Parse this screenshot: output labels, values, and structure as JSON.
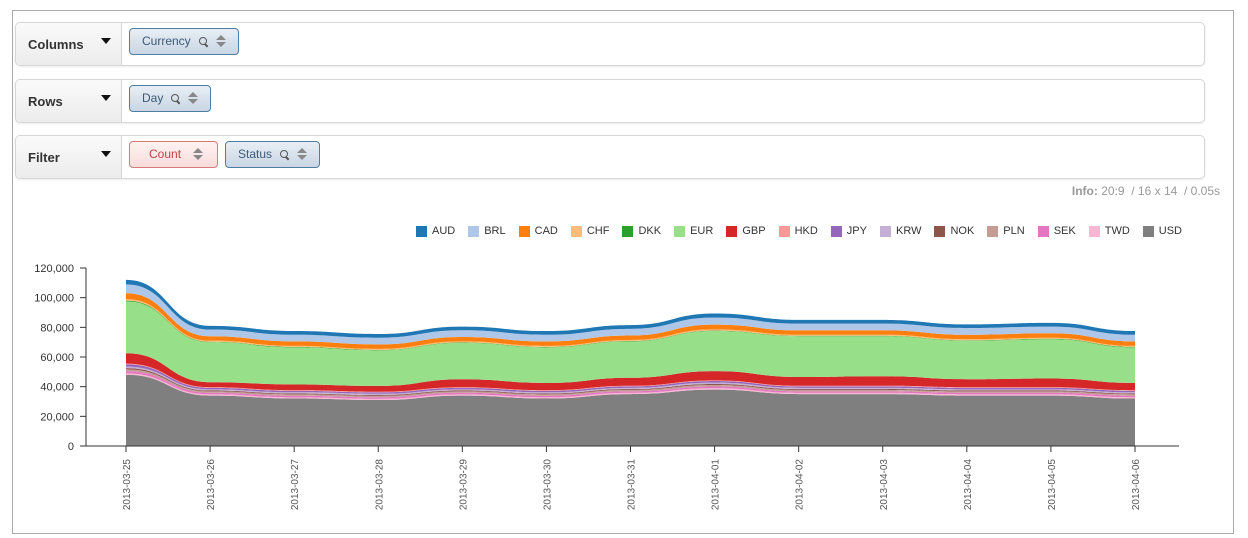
{
  "controls": {
    "columns": {
      "label": "Columns",
      "pills": [
        {
          "label": "Currency"
        }
      ]
    },
    "rows": {
      "label": "Rows",
      "pills": [
        {
          "label": "Day"
        }
      ]
    },
    "filter": {
      "label": "Filter",
      "pills": [
        {
          "label": "Count"
        },
        {
          "label": "Status"
        }
      ]
    }
  },
  "info": {
    "label": "Info:",
    "ratio": "20:9",
    "size": "16 x 14",
    "time": "0.05s"
  },
  "chart_data": {
    "type": "area",
    "stacked": true,
    "x": [
      "2013-03-25",
      "2013-03-26",
      "2013-03-27",
      "2013-03-28",
      "2013-03-29",
      "2013-03-30",
      "2013-03-31",
      "2013-04-01",
      "2013-04-02",
      "2013-04-03",
      "2013-04-04",
      "2013-04-05",
      "2013-04-06"
    ],
    "ylim": [
      0,
      120000
    ],
    "yticks": [
      "0",
      "20,000",
      "40,000",
      "60,000",
      "80,000",
      "100,000",
      "120,000"
    ],
    "legend_position": "top-right",
    "series": [
      {
        "name": "USD",
        "color": "#7f7f7f",
        "values": [
          48000,
          34000,
          32000,
          31000,
          34000,
          32000,
          35000,
          38000,
          35000,
          35000,
          34000,
          34000,
          32000
        ]
      },
      {
        "name": "TWD",
        "color": "#f7b6d2",
        "values": [
          1000,
          800,
          800,
          800,
          800,
          800,
          800,
          900,
          800,
          800,
          800,
          800,
          800
        ]
      },
      {
        "name": "SEK",
        "color": "#e377c2",
        "values": [
          1500,
          1100,
          1100,
          1100,
          1100,
          1100,
          1100,
          1200,
          1100,
          1100,
          1100,
          1100,
          1100
        ]
      },
      {
        "name": "PLN",
        "color": "#c49c94",
        "values": [
          1200,
          900,
          900,
          900,
          900,
          900,
          900,
          1000,
          900,
          900,
          900,
          900,
          900
        ]
      },
      {
        "name": "NOK",
        "color": "#8c564b",
        "values": [
          800,
          600,
          600,
          600,
          600,
          600,
          600,
          700,
          600,
          600,
          600,
          600,
          600
        ]
      },
      {
        "name": "KRW",
        "color": "#c5b0d5",
        "values": [
          1000,
          800,
          800,
          800,
          800,
          800,
          800,
          900,
          800,
          800,
          800,
          800,
          800
        ]
      },
      {
        "name": "JPY",
        "color": "#9467bd",
        "values": [
          1500,
          1000,
          1000,
          1000,
          1000,
          1000,
          1000,
          1100,
          1000,
          1000,
          1000,
          1000,
          1000
        ]
      },
      {
        "name": "HKD",
        "color": "#ff9896",
        "values": [
          500,
          400,
          400,
          400,
          400,
          400,
          400,
          400,
          400,
          400,
          400,
          400,
          400
        ]
      },
      {
        "name": "GBP",
        "color": "#d62728",
        "values": [
          7000,
          3400,
          3900,
          3900,
          5400,
          4900,
          5400,
          6300,
          5900,
          6400,
          5400,
          5900,
          4900
        ]
      },
      {
        "name": "EUR",
        "color": "#98df8a",
        "values": [
          35000,
          27000,
          25000,
          24000,
          24500,
          24000,
          24500,
          27000,
          27500,
          27000,
          26000,
          26500,
          24000
        ]
      },
      {
        "name": "DKK",
        "color": "#2ca02c",
        "values": [
          500,
          300,
          300,
          300,
          300,
          300,
          300,
          300,
          300,
          300,
          300,
          300,
          300
        ]
      },
      {
        "name": "CHF",
        "color": "#ffbb78",
        "values": [
          1000,
          700,
          700,
          700,
          700,
          700,
          700,
          800,
          700,
          700,
          700,
          700,
          700
        ]
      },
      {
        "name": "CAD",
        "color": "#ff7f0e",
        "values": [
          4000,
          3000,
          3000,
          3000,
          3000,
          3000,
          3000,
          3200,
          3000,
          3000,
          3000,
          3000,
          3000
        ]
      },
      {
        "name": "BRL",
        "color": "#aec7e8",
        "values": [
          6000,
          4500,
          4500,
          4500,
          4500,
          4500,
          4500,
          4800,
          4500,
          4500,
          4500,
          4500,
          4500
        ]
      },
      {
        "name": "AUD",
        "color": "#1f77b4",
        "values": [
          3000,
          2500,
          2500,
          2500,
          2500,
          2500,
          2500,
          2700,
          2500,
          2500,
          2500,
          2500,
          2500
        ]
      }
    ],
    "legend": [
      "AUD",
      "BRL",
      "CAD",
      "CHF",
      "DKK",
      "EUR",
      "GBP",
      "HKD",
      "JPY",
      "KRW",
      "NOK",
      "PLN",
      "SEK",
      "TWD",
      "USD"
    ]
  }
}
